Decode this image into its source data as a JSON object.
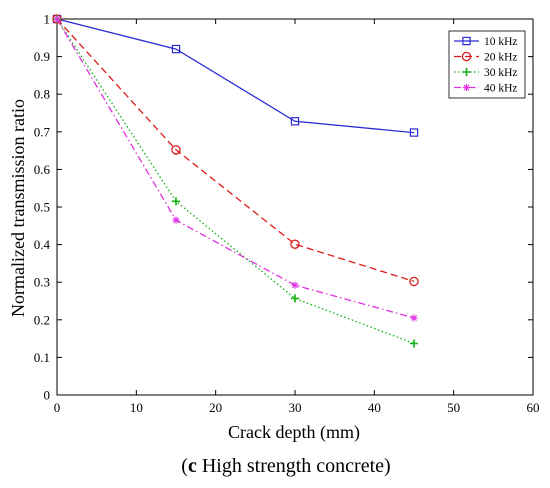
{
  "chart_data": {
    "type": "line",
    "title": "",
    "xlabel": "Crack depth (mm)",
    "ylabel": "Normalized transmission ratio",
    "xlim": [
      0,
      60
    ],
    "ylim": [
      0,
      1
    ],
    "xticks": [
      0,
      10,
      20,
      30,
      40,
      50,
      60
    ],
    "yticks": [
      0,
      0.1,
      0.2,
      0.3,
      0.4,
      0.5,
      0.6,
      0.7,
      0.8,
      0.9,
      1
    ],
    "grid": false,
    "legend_position": "top-right",
    "x": [
      0,
      15,
      30,
      45
    ],
    "series": [
      {
        "name": "10 kHz",
        "values": [
          1.0,
          0.92,
          0.728,
          0.698
        ],
        "color": "#2b2bd4",
        "dash": "solid",
        "marker": "square"
      },
      {
        "name": "20 kHz",
        "values": [
          1.0,
          0.652,
          0.401,
          0.302
        ],
        "color": "#dd1a1a",
        "dash": "dashed",
        "marker": "circle"
      },
      {
        "name": "30 kHz",
        "values": [
          1.0,
          0.515,
          0.257,
          0.137
        ],
        "color": "#13b313",
        "dash": "dotted",
        "marker": "plus"
      },
      {
        "name": "40 kHz",
        "values": [
          1.0,
          0.465,
          0.292,
          0.205
        ],
        "color": "#e030e0",
        "dash": "dashdot",
        "marker": "star"
      }
    ]
  },
  "caption": {
    "letter": "c",
    "text": " High strength concrete"
  }
}
